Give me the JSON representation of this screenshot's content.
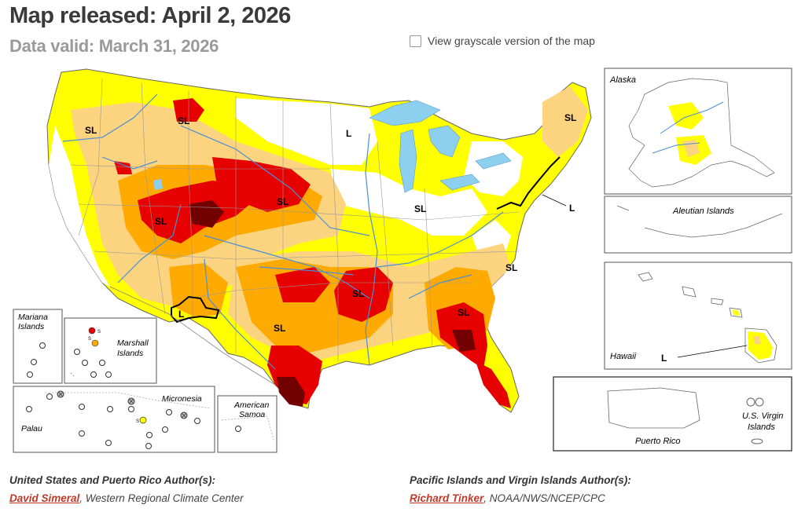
{
  "header": {
    "released": "Map released: April 2, 2026",
    "valid": "Data valid: March 31, 2026",
    "grayscale_label": "View grayscale version of the map"
  },
  "map": {
    "impact_labels": {
      "short": "SL",
      "long": "L",
      "small_s": "S"
    },
    "insets": {
      "alaska": "Alaska",
      "aleutian": "Aleutian Islands",
      "hawaii": "Hawaii",
      "puerto_rico": "Puerto Rico",
      "usvi_line1": "U.S. Virgin",
      "usvi_line2": "Islands",
      "mariana_line1": "Mariana",
      "mariana_line2": "Islands",
      "marshall_line1": "Marshall",
      "marshall_line2": "Islands",
      "micronesia": "Micronesia",
      "palau": "Palau",
      "samoa_line1": "American",
      "samoa_line2": "Samoa"
    },
    "colors": {
      "d0": "#ffff00",
      "d1": "#fcd37f",
      "d2": "#ffaa00",
      "d3": "#e60000",
      "d4": "#730000",
      "water": "#8dcfee",
      "river": "#4a8fd6"
    }
  },
  "credits": {
    "us_head": "United States and Puerto Rico Author(s):",
    "us_author": "David Simeral",
    "us_org": ", Western Regional Climate Center",
    "pi_head": "Pacific Islands and Virgin Islands Author(s):",
    "pi_author": "Richard Tinker",
    "pi_org": ", NOAA/NWS/NCEP/CPC"
  }
}
